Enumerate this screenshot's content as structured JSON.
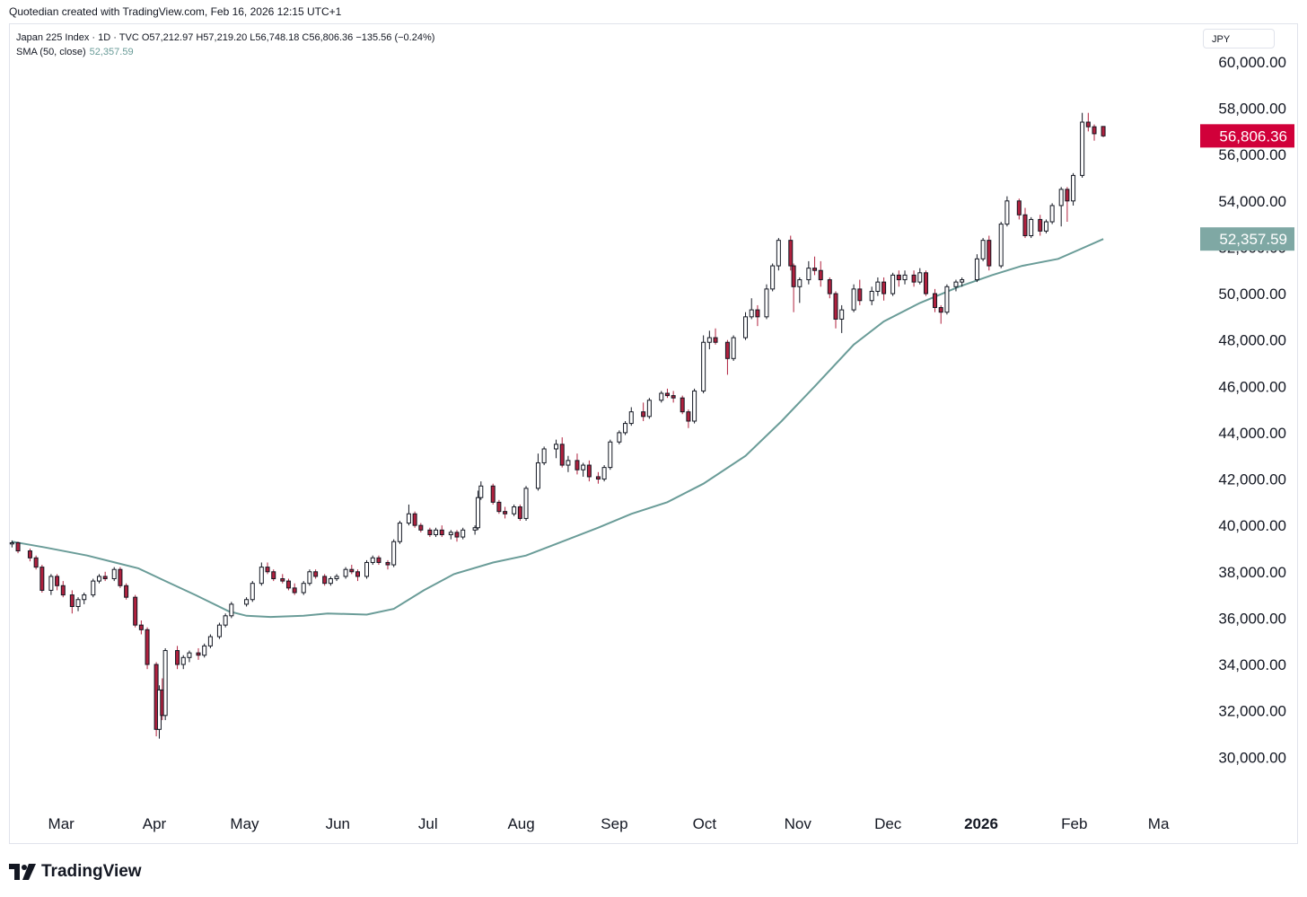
{
  "caption": "Quotedian created with TradingView.com, Feb 16, 2026 12:15 UTC+1",
  "legend": {
    "ohlc_line": "Japan 225 Index · 1D · TVC  O57,212.97  H57,219.20  L56,748.18  C56,806.36  −135.56 (−0.24%)",
    "sma_label": "SMA (50, close)",
    "sma_value": "52,357.59"
  },
  "currency": "JPY",
  "brand": "TradingView",
  "colors": {
    "up": "#ffffff",
    "down": "#b0213e",
    "wick": "#131722",
    "sma": "#6a9c98",
    "last_price_bg": "#d1003a",
    "sma_label_bg": "#7fa8a4"
  },
  "chart_data": {
    "type": "candlestick",
    "y_ticks": [
      "60,000.00",
      "58,000.00",
      "56,000.00",
      "54,000.00",
      "52,000.00",
      "50,000.00",
      "48,000.00",
      "46,000.00",
      "44,000.00",
      "42,000.00",
      "40,000.00",
      "38,000.00",
      "36,000.00",
      "34,000.00",
      "32,000.00",
      "30,000.00"
    ],
    "y_tick_values": [
      60000,
      58000,
      56000,
      54000,
      52000,
      50000,
      48000,
      46000,
      44000,
      42000,
      40000,
      38000,
      36000,
      34000,
      32000,
      30000
    ],
    "x_ticks": [
      {
        "label": "Mar",
        "date": "2025-03-01",
        "bold": false
      },
      {
        "label": "Apr",
        "date": "2025-04-01",
        "bold": false
      },
      {
        "label": "May",
        "date": "2025-05-01",
        "bold": false
      },
      {
        "label": "Jun",
        "date": "2025-06-01",
        "bold": false
      },
      {
        "label": "Jul",
        "date": "2025-07-01",
        "bold": false
      },
      {
        "label": "Aug",
        "date": "2025-08-01",
        "bold": false
      },
      {
        "label": "Sep",
        "date": "2025-09-01",
        "bold": false
      },
      {
        "label": "Oct",
        "date": "2025-10-01",
        "bold": false
      },
      {
        "label": "Nov",
        "date": "2025-11-01",
        "bold": false
      },
      {
        "label": "Dec",
        "date": "2025-12-01",
        "bold": false
      },
      {
        "label": "2026",
        "date": "2026-01-01",
        "bold": true
      },
      {
        "label": "Feb",
        "date": "2026-02-01",
        "bold": false
      },
      {
        "label": "Ma",
        "date": "2026-03-01",
        "bold": false
      }
    ],
    "x_range": [
      "2025-02-17",
      "2026-03-05"
    ],
    "y_range": [
      28500,
      60500
    ],
    "last_price": "56,806.36",
    "last_price_value": 56806.36,
    "sma_last": "52,357.59",
    "sma_last_value": 52357.59,
    "candles": [
      [
        "2025-02-18",
        39200,
        39350,
        39050,
        39250
      ],
      [
        "2025-02-20",
        39250,
        39300,
        38800,
        38900
      ],
      [
        "2025-02-24",
        38900,
        39000,
        38450,
        38600
      ],
      [
        "2025-02-26",
        38600,
        38700,
        38100,
        38200
      ],
      [
        "2025-02-28",
        38200,
        38300,
        37100,
        37200
      ],
      [
        "2025-03-03",
        37200,
        37900,
        37000,
        37800
      ],
      [
        "2025-03-05",
        37800,
        37900,
        37200,
        37400
      ],
      [
        "2025-03-07",
        37400,
        37600,
        36900,
        37000
      ],
      [
        "2025-03-10",
        37000,
        37200,
        36200,
        36500
      ],
      [
        "2025-03-12",
        36500,
        36900,
        36300,
        36800
      ],
      [
        "2025-03-14",
        36800,
        37100,
        36600,
        37000
      ],
      [
        "2025-03-17",
        37000,
        37700,
        36900,
        37600
      ],
      [
        "2025-03-19",
        37600,
        37900,
        37500,
        37800
      ],
      [
        "2025-03-21",
        37800,
        38000,
        37600,
        37700
      ],
      [
        "2025-03-24",
        37700,
        38200,
        37600,
        38100
      ],
      [
        "2025-03-26",
        38100,
        38200,
        37300,
        37400
      ],
      [
        "2025-03-28",
        37400,
        37500,
        36800,
        36900
      ],
      [
        "2025-03-31",
        36900,
        37000,
        35600,
        35700
      ],
      [
        "2025-04-02",
        35700,
        35900,
        35300,
        35500
      ],
      [
        "2025-04-04",
        35500,
        35600,
        33800,
        34000
      ],
      [
        "2025-04-07",
        34000,
        34100,
        30900,
        31200
      ],
      [
        "2025-04-08",
        31200,
        33100,
        30800,
        32900
      ],
      [
        "2025-04-09",
        32900,
        33400,
        31600,
        31800
      ],
      [
        "2025-04-10",
        31800,
        34700,
        31600,
        34600
      ],
      [
        "2025-04-14",
        34600,
        34800,
        33800,
        34000
      ],
      [
        "2025-04-16",
        34000,
        34400,
        33800,
        34300
      ],
      [
        "2025-04-18",
        34300,
        34600,
        34100,
        34500
      ],
      [
        "2025-04-21",
        34500,
        34700,
        34200,
        34400
      ],
      [
        "2025-04-23",
        34400,
        34900,
        34300,
        34800
      ],
      [
        "2025-04-25",
        34800,
        35300,
        34700,
        35200
      ],
      [
        "2025-04-28",
        35200,
        35800,
        35100,
        35700
      ],
      [
        "2025-04-30",
        35700,
        36200,
        35600,
        36100
      ],
      [
        "2025-05-02",
        36100,
        36700,
        36000,
        36600
      ],
      [
        "2025-05-07",
        36600,
        36900,
        36500,
        36800
      ],
      [
        "2025-05-09",
        36800,
        37600,
        36700,
        37500
      ],
      [
        "2025-05-12",
        37500,
        38400,
        37400,
        38200
      ],
      [
        "2025-05-14",
        38200,
        38400,
        37900,
        38000
      ],
      [
        "2025-05-16",
        38000,
        38100,
        37600,
        37700
      ],
      [
        "2025-05-19",
        37700,
        37900,
        37500,
        37600
      ],
      [
        "2025-05-21",
        37600,
        37700,
        37200,
        37300
      ],
      [
        "2025-05-23",
        37300,
        37500,
        37000,
        37100
      ],
      [
        "2025-05-26",
        37100,
        37600,
        37000,
        37500
      ],
      [
        "2025-05-28",
        37500,
        38100,
        37400,
        38000
      ],
      [
        "2025-05-30",
        38000,
        38100,
        37700,
        37800
      ],
      [
        "2025-06-02",
        37800,
        37900,
        37400,
        37500
      ],
      [
        "2025-06-04",
        37500,
        37800,
        37400,
        37700
      ],
      [
        "2025-06-06",
        37700,
        37900,
        37600,
        37800
      ],
      [
        "2025-06-09",
        37800,
        38200,
        37700,
        38100
      ],
      [
        "2025-06-11",
        38100,
        38300,
        37900,
        38000
      ],
      [
        "2025-06-13",
        38000,
        38100,
        37600,
        37800
      ],
      [
        "2025-06-16",
        37800,
        38500,
        37700,
        38400
      ],
      [
        "2025-06-18",
        38400,
        38700,
        38300,
        38600
      ],
      [
        "2025-06-20",
        38600,
        38700,
        38300,
        38400
      ],
      [
        "2025-06-23",
        38400,
        38500,
        38100,
        38300
      ],
      [
        "2025-06-25",
        38300,
        39400,
        38200,
        39300
      ],
      [
        "2025-06-27",
        39300,
        40200,
        39200,
        40100
      ],
      [
        "2025-06-30",
        40100,
        40900,
        40000,
        40500
      ],
      [
        "2025-07-02",
        40500,
        40600,
        39900,
        40000
      ],
      [
        "2025-07-04",
        40000,
        40100,
        39700,
        39800
      ],
      [
        "2025-07-07",
        39800,
        39900,
        39500,
        39600
      ],
      [
        "2025-07-09",
        39600,
        39900,
        39500,
        39800
      ],
      [
        "2025-07-11",
        39800,
        40000,
        39500,
        39600
      ],
      [
        "2025-07-14",
        39600,
        39800,
        39400,
        39700
      ],
      [
        "2025-07-16",
        39700,
        39800,
        39300,
        39500
      ],
      [
        "2025-07-18",
        39500,
        39900,
        39400,
        39800
      ],
      [
        "2025-07-22",
        39800,
        40000,
        39600,
        39900
      ],
      [
        "2025-07-23",
        39900,
        41500,
        39800,
        41200
      ],
      [
        "2025-07-24",
        41200,
        41900,
        41100,
        41700
      ],
      [
        "2025-07-28",
        41700,
        41800,
        40900,
        41000
      ],
      [
        "2025-07-30",
        41000,
        41100,
        40500,
        40600
      ],
      [
        "2025-08-01",
        40600,
        40800,
        40300,
        40500
      ],
      [
        "2025-08-04",
        40500,
        40900,
        40400,
        40800
      ],
      [
        "2025-08-06",
        40800,
        40900,
        40200,
        40300
      ],
      [
        "2025-08-08",
        40300,
        41700,
        40200,
        41600
      ],
      [
        "2025-08-12",
        41600,
        43100,
        41500,
        42700
      ],
      [
        "2025-08-14",
        42700,
        43400,
        42600,
        43300
      ],
      [
        "2025-08-18",
        43300,
        43700,
        42900,
        43500
      ],
      [
        "2025-08-20",
        43500,
        43800,
        42500,
        42600
      ],
      [
        "2025-08-22",
        42600,
        43000,
        42300,
        42800
      ],
      [
        "2025-08-25",
        42800,
        43100,
        42200,
        42400
      ],
      [
        "2025-08-27",
        42400,
        42700,
        42100,
        42600
      ],
      [
        "2025-08-29",
        42600,
        42800,
        41900,
        42100
      ],
      [
        "2025-09-01",
        42100,
        42300,
        41800,
        42000
      ],
      [
        "2025-09-03",
        42000,
        42600,
        41900,
        42500
      ],
      [
        "2025-09-05",
        42500,
        43700,
        42400,
        43600
      ],
      [
        "2025-09-08",
        43600,
        44100,
        43500,
        44000
      ],
      [
        "2025-09-10",
        44000,
        44500,
        43900,
        44400
      ],
      [
        "2025-09-12",
        44400,
        45100,
        44300,
        44900
      ],
      [
        "2025-09-16",
        44900,
        45300,
        44500,
        44700
      ],
      [
        "2025-09-18",
        44700,
        45500,
        44600,
        45400
      ],
      [
        "2025-09-22",
        45400,
        45800,
        45300,
        45700
      ],
      [
        "2025-09-24",
        45700,
        45900,
        45500,
        45600
      ],
      [
        "2025-09-26",
        45600,
        45800,
        45300,
        45500
      ],
      [
        "2025-09-29",
        45500,
        45600,
        44800,
        44900
      ],
      [
        "2025-10-01",
        44900,
        45000,
        44200,
        44500
      ],
      [
        "2025-10-03",
        44500,
        45900,
        44400,
        45800
      ],
      [
        "2025-10-06",
        45800,
        48200,
        45700,
        47900
      ],
      [
        "2025-10-08",
        47900,
        48400,
        47600,
        48100
      ],
      [
        "2025-10-10",
        48100,
        48500,
        47800,
        47900
      ],
      [
        "2025-10-14",
        47900,
        48000,
        46500,
        47200
      ],
      [
        "2025-10-16",
        47200,
        48200,
        47100,
        48100
      ],
      [
        "2025-10-20",
        48100,
        49200,
        48000,
        49000
      ],
      [
        "2025-10-22",
        49000,
        49800,
        48900,
        49300
      ],
      [
        "2025-10-24",
        49300,
        49500,
        48600,
        49000
      ],
      [
        "2025-10-27",
        49000,
        50400,
        48900,
        50200
      ],
      [
        "2025-10-29",
        50200,
        51300,
        50100,
        51200
      ],
      [
        "2025-10-31",
        51200,
        52400,
        51000,
        52300
      ],
      [
        "2025-11-04",
        52300,
        52500,
        51000,
        51200
      ],
      [
        "2025-11-05",
        51200,
        51300,
        49200,
        50300
      ],
      [
        "2025-11-07",
        50300,
        50700,
        49600,
        50600
      ],
      [
        "2025-11-10",
        50600,
        51400,
        50400,
        51100
      ],
      [
        "2025-11-12",
        51100,
        51600,
        50800,
        51000
      ],
      [
        "2025-11-14",
        51000,
        51400,
        50300,
        50600
      ],
      [
        "2025-11-17",
        50600,
        50700,
        49800,
        50000
      ],
      [
        "2025-11-19",
        50000,
        50100,
        48500,
        48900
      ],
      [
        "2025-11-21",
        48900,
        49500,
        48300,
        49300
      ],
      [
        "2025-11-25",
        49300,
        50400,
        49200,
        50200
      ],
      [
        "2025-11-27",
        50200,
        50600,
        49500,
        49700
      ],
      [
        "2025-12-01",
        49700,
        50300,
        49500,
        50100
      ],
      [
        "2025-12-03",
        50100,
        50700,
        49900,
        50500
      ],
      [
        "2025-12-05",
        50500,
        50700,
        49700,
        50000
      ],
      [
        "2025-12-08",
        50000,
        50900,
        49900,
        50800
      ],
      [
        "2025-12-10",
        50800,
        51000,
        50300,
        50600
      ],
      [
        "2025-12-12",
        50600,
        51000,
        50400,
        50800
      ],
      [
        "2025-12-15",
        50800,
        51000,
        50300,
        50500
      ],
      [
        "2025-12-17",
        50500,
        51100,
        50400,
        50900
      ],
      [
        "2025-12-19",
        50900,
        51000,
        49900,
        50000
      ],
      [
        "2025-12-22",
        50000,
        50200,
        49200,
        49400
      ],
      [
        "2025-12-24",
        49400,
        49500,
        48700,
        49200
      ],
      [
        "2025-12-26",
        49200,
        50400,
        49100,
        50300
      ],
      [
        "2025-12-29",
        50300,
        50600,
        50100,
        50500
      ],
      [
        "2025-12-31",
        50500,
        50700,
        50300,
        50600
      ],
      [
        "2026-01-05",
        50600,
        51700,
        50500,
        51500
      ],
      [
        "2026-01-07",
        51500,
        52400,
        51400,
        52300
      ],
      [
        "2026-01-09",
        52300,
        52500,
        51000,
        51200
      ],
      [
        "2026-01-13",
        51200,
        53100,
        51100,
        53000
      ],
      [
        "2026-01-15",
        53000,
        54200,
        52900,
        54000
      ],
      [
        "2026-01-19",
        54000,
        54100,
        53200,
        53400
      ],
      [
        "2026-01-21",
        53400,
        53700,
        52400,
        52500
      ],
      [
        "2026-01-23",
        52500,
        53300,
        52400,
        53200
      ],
      [
        "2026-01-26",
        53200,
        53400,
        52500,
        52700
      ],
      [
        "2026-01-28",
        52700,
        53200,
        52600,
        53100
      ],
      [
        "2026-01-30",
        53100,
        53900,
        53000,
        53800
      ],
      [
        "2026-02-02",
        53800,
        54600,
        52900,
        54500
      ],
      [
        "2026-02-04",
        54500,
        54600,
        53100,
        54000
      ],
      [
        "2026-02-06",
        54000,
        55200,
        53800,
        55100
      ],
      [
        "2026-02-09",
        55100,
        57800,
        55000,
        57400
      ],
      [
        "2026-02-11",
        57400,
        57800,
        57000,
        57200
      ],
      [
        "2026-02-13",
        57200,
        57300,
        56600,
        56900
      ],
      [
        "2026-02-16",
        57212.97,
        57219.2,
        56748.18,
        56806.36
      ]
    ],
    "sma": [
      [
        "2025-02-18",
        39300
      ],
      [
        "2025-03-01",
        39050
      ],
      [
        "2025-03-15",
        38700
      ],
      [
        "2025-04-01",
        38150
      ],
      [
        "2025-04-10",
        37600
      ],
      [
        "2025-04-20",
        37000
      ],
      [
        "2025-05-01",
        36300
      ],
      [
        "2025-05-07",
        36100
      ],
      [
        "2025-05-15",
        36050
      ],
      [
        "2025-05-26",
        36100
      ],
      [
        "2025-06-03",
        36200
      ],
      [
        "2025-06-16",
        36150
      ],
      [
        "2025-06-25",
        36400
      ],
      [
        "2025-07-05",
        37200
      ],
      [
        "2025-07-15",
        37900
      ],
      [
        "2025-07-28",
        38400
      ],
      [
        "2025-08-08",
        38700
      ],
      [
        "2025-08-18",
        39200
      ],
      [
        "2025-09-01",
        39900
      ],
      [
        "2025-09-12",
        40500
      ],
      [
        "2025-09-24",
        41000
      ],
      [
        "2025-10-06",
        41800
      ],
      [
        "2025-10-20",
        43000
      ],
      [
        "2025-11-01",
        44500
      ],
      [
        "2025-11-12",
        46000
      ],
      [
        "2025-11-25",
        47800
      ],
      [
        "2025-12-05",
        48800
      ],
      [
        "2025-12-17",
        49600
      ],
      [
        "2025-12-30",
        50300
      ],
      [
        "2026-01-10",
        50800
      ],
      [
        "2026-01-20",
        51200
      ],
      [
        "2026-02-01",
        51500
      ],
      [
        "2026-02-08",
        51900
      ],
      [
        "2026-02-16",
        52357.59
      ]
    ]
  }
}
